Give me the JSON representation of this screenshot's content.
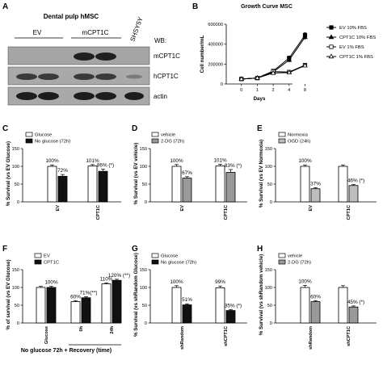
{
  "panels": {
    "A": {
      "letter": "A",
      "title": "Dental pulp hMSC",
      "lanes": [
        "EV",
        "mCPT1C",
        "SHSY5Y"
      ],
      "wb_label": "WB:",
      "rows": [
        "mCPT1C",
        "hCPT1C",
        "actin"
      ]
    },
    "B": {
      "letter": "B"
    },
    "C": {
      "letter": "C"
    },
    "D": {
      "letter": "D"
    },
    "E": {
      "letter": "E"
    },
    "F": {
      "letter": "F"
    },
    "G": {
      "letter": "G"
    },
    "H": {
      "letter": "H"
    }
  },
  "chart_data": [
    {
      "id": "B",
      "type": "line",
      "title": "Growth Curve MSC",
      "xlabel": "Days",
      "ylabel": "Cell number/mL",
      "x": [
        0,
        1,
        2,
        4,
        8
      ],
      "xticks": [
        "0",
        "1",
        "2",
        "4",
        "8"
      ],
      "ylim": [
        0,
        600000
      ],
      "yticks": [
        "0",
        "200000",
        "400000",
        "600000"
      ],
      "legend_position": "right",
      "series": [
        {
          "name": "EV 10% FBS",
          "marker": "square-filled",
          "values": [
            50000,
            60000,
            130000,
            260000,
            490000
          ],
          "err": [
            5000,
            6000,
            10000,
            20000,
            25000
          ]
        },
        {
          "name": "CPT1C 10% FBS",
          "marker": "triangle-filled",
          "values": [
            50000,
            60000,
            120000,
            240000,
            470000
          ],
          "err": [
            5000,
            6000,
            10000,
            20000,
            25000
          ]
        },
        {
          "name": "EV 1% FBS",
          "marker": "square-open",
          "values": [
            50000,
            60000,
            125000,
            120000,
            190000
          ],
          "err": [
            5000,
            6000,
            10000,
            10000,
            15000
          ]
        },
        {
          "name": "CPT1C 1% FBS",
          "marker": "triangle-open",
          "values": [
            50000,
            60000,
            110000,
            115000,
            185000
          ],
          "err": [
            5000,
            6000,
            10000,
            10000,
            15000
          ]
        }
      ]
    },
    {
      "id": "C",
      "type": "bar",
      "ylabel": "% Survival (vs EV Glucose)",
      "ylim": [
        0,
        150
      ],
      "yticks": [
        "0",
        "50",
        "100",
        "150"
      ],
      "categories": [
        "EV",
        "CPT1C"
      ],
      "legend_position": "top-left",
      "series": [
        {
          "name": "Glucose",
          "fill": "#ffffff",
          "values": [
            100,
            101
          ],
          "err": [
            4,
            4
          ],
          "labels": [
            "100%",
            "101%"
          ]
        },
        {
          "name": "No glucose (72h)",
          "fill": "#111111",
          "values": [
            72,
            86
          ],
          "err": [
            5,
            6
          ],
          "labels": [
            "72%",
            "86% (*)"
          ]
        }
      ]
    },
    {
      "id": "D",
      "type": "bar",
      "ylabel": "% Survival (vs EV vehicle)",
      "ylim": [
        0,
        150
      ],
      "yticks": [
        "0",
        "50",
        "100",
        "150"
      ],
      "categories": [
        "EV",
        "CPT1C"
      ],
      "legend_position": "top-left",
      "series": [
        {
          "name": "vehicle",
          "fill": "#ffffff",
          "values": [
            100,
            101
          ],
          "err": [
            5,
            5
          ],
          "labels": [
            "100%",
            "101%"
          ]
        },
        {
          "name": "2-DG (72h)",
          "fill": "#999999",
          "values": [
            67,
            83
          ],
          "err": [
            4,
            8
          ],
          "labels": [
            "67%",
            "83% (*)"
          ]
        }
      ]
    },
    {
      "id": "E",
      "type": "bar",
      "ylabel": "% Survival (vs EV Normoxia)",
      "ylim": [
        0,
        150
      ],
      "yticks": [
        "0",
        "50",
        "100",
        "150"
      ],
      "categories": [
        "EV",
        "CPT1C"
      ],
      "legend_position": "top-left",
      "series": [
        {
          "name": "Normoxia",
          "fill": "#ffffff",
          "values": [
            100,
            100
          ],
          "err": [
            4,
            4
          ],
          "labels": [
            "100%",
            ""
          ]
        },
        {
          "name": "OGD (24h)",
          "fill": "#bdbdbd",
          "values": [
            37,
            46
          ],
          "err": [
            3,
            3
          ],
          "labels": [
            "37%",
            "46% (*)"
          ]
        }
      ]
    },
    {
      "id": "F",
      "type": "bar",
      "ylabel": "% of survival (vs EV Glucose)",
      "xlabel": "No glucose 72h + Recovery (time)",
      "ylim": [
        0,
        150
      ],
      "yticks": [
        "0",
        "50",
        "100",
        "150"
      ],
      "categories": [
        "Glucose",
        "0h",
        "24h"
      ],
      "legend_position": "top-left",
      "series": [
        {
          "name": "EV",
          "fill": "#ffffff",
          "values": [
            100,
            60,
            110
          ],
          "err": [
            3,
            3,
            3
          ],
          "labels": [
            "",
            "60%",
            "110%"
          ]
        },
        {
          "name": "CPT1C",
          "fill": "#111111",
          "values": [
            100,
            71,
            120
          ],
          "err": [
            3,
            3,
            3
          ],
          "labels": [
            "100%",
            "71%(**)",
            "120% (**)"
          ]
        }
      ]
    },
    {
      "id": "G",
      "type": "bar",
      "ylabel": "% Survival (vs shRandom Glucose)",
      "ylim": [
        0,
        150
      ],
      "yticks": [
        "0",
        "50",
        "100",
        "150"
      ],
      "categories": [
        "shRandom",
        "shCPT1C"
      ],
      "legend_position": "top-left",
      "series": [
        {
          "name": "Glucose",
          "fill": "#ffffff",
          "values": [
            100,
            99
          ],
          "err": [
            5,
            5
          ],
          "labels": [
            "100%",
            "99%"
          ]
        },
        {
          "name": "No glucose (72h)",
          "fill": "#111111",
          "values": [
            51,
            35
          ],
          "err": [
            3,
            3
          ],
          "labels": [
            "51%",
            "35% (*)"
          ]
        }
      ]
    },
    {
      "id": "H",
      "type": "bar",
      "ylabel": "% Survival (vs shRandom vehicle)",
      "ylim": [
        0,
        150
      ],
      "yticks": [
        "0",
        "50",
        "100",
        "150"
      ],
      "categories": [
        "shRandom",
        "shCPT1C"
      ],
      "legend_position": "top-left",
      "series": [
        {
          "name": "vehicle",
          "fill": "#ffffff",
          "values": [
            100,
            100
          ],
          "err": [
            6,
            5
          ],
          "labels": [
            "100%",
            ""
          ]
        },
        {
          "name": "2-DG (72h)",
          "fill": "#999999",
          "values": [
            60,
            45
          ],
          "err": [
            3,
            3
          ],
          "labels": [
            "60%",
            "45% (*)"
          ]
        }
      ]
    }
  ]
}
